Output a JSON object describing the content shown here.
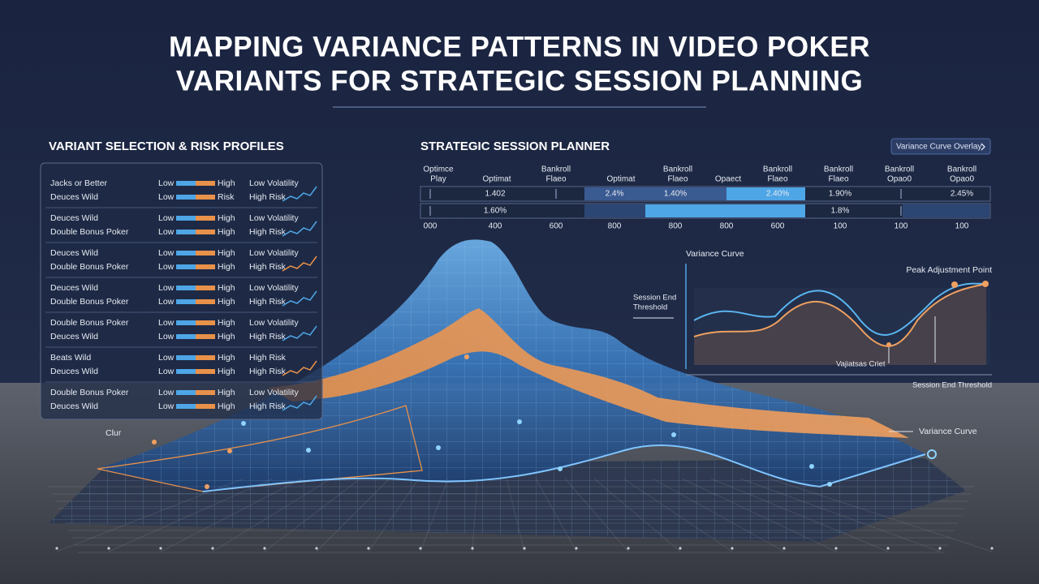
{
  "header": {
    "title_lines": [
      "MAPPING VARIANCE PATTERNS IN VIDEO POKER",
      "VARIANTS FOR STRATEGIC SESSION PLANNING"
    ]
  },
  "variant_panel": {
    "title": "VARIANT SELECTION & RISK PROFILES",
    "groups": [
      [
        {
          "name": "Jacks or Better",
          "low": "Low",
          "high": "High",
          "profile": "Low Volatility"
        },
        {
          "name": "Deuces Wild",
          "low": "Low",
          "high": "Risk",
          "profile": "High Risk"
        }
      ],
      [
        {
          "name": "Deuces Wild",
          "low": "Low",
          "high": "High",
          "profile": "Low Volatility"
        },
        {
          "name": "Double Bonus Poker",
          "low": "Low",
          "high": "High",
          "profile": "High Risk"
        }
      ],
      [
        {
          "name": "Deuces Wild",
          "low": "Low",
          "high": "High",
          "profile": "Low Volatility"
        },
        {
          "name": "Double Bonus Poker",
          "low": "Low",
          "high": "High",
          "profile": "High Risk"
        }
      ],
      [
        {
          "name": "Deuces Wild",
          "low": "Low",
          "high": "High",
          "profile": "Low Volatility"
        },
        {
          "name": "Double Bonus Poker",
          "low": "Low",
          "high": "High",
          "profile": "High Risk"
        }
      ],
      [
        {
          "name": "Double Bonus Poker",
          "low": "Low",
          "high": "High",
          "profile": "Low Volatility"
        },
        {
          "name": "Deuces Wild",
          "low": "Low",
          "high": "High",
          "profile": "High Risk"
        }
      ],
      [
        {
          "name": "Beats Wild",
          "low": "Low",
          "high": "High",
          "profile": "High Risk"
        },
        {
          "name": "Deuces Wild",
          "low": "Low",
          "high": "High",
          "profile": "High Risk"
        }
      ],
      [
        {
          "name": "Double Bonus Poker",
          "low": "Low",
          "high": "High",
          "profile": "Low Volatility"
        },
        {
          "name": "Deuces Wild",
          "low": "Low",
          "high": "High",
          "profile": "High Risk"
        }
      ]
    ]
  },
  "planner": {
    "title": "STRATEGIC SESSION PLANNER",
    "button": "Variance Curve Overlay",
    "headers": [
      [
        "Optimce",
        "Play"
      ],
      [
        "Optimat"
      ],
      [
        "Bankroll",
        "Flaeo"
      ],
      [
        "Optimat"
      ],
      [
        "Bankroll",
        "Flaeo"
      ],
      [
        "Opaect"
      ],
      [
        "Bankroll",
        "Flaeo"
      ],
      [
        "Bankroll",
        "Flaeo"
      ],
      [
        "Bankroll",
        "Opao0"
      ],
      [
        "Bankroll",
        "Opao0"
      ]
    ],
    "row1": [
      "1.402",
      "2.4%",
      "1.40%",
      "2.40%",
      "1.90%",
      "2.45%"
    ],
    "row2": [
      "1.60%",
      "1.8%"
    ],
    "scale": [
      "000",
      "400",
      "600",
      "800",
      "800",
      "800",
      "600",
      "100",
      "100",
      "100"
    ]
  },
  "curve_panel": {
    "title": "Variance Curve",
    "peak": "Peak Adjustment Point",
    "threshold_lines": [
      "Session End",
      "Threshold"
    ],
    "variance_point": "Vajiatsas Criet",
    "bottom": "Session End Threshold"
  },
  "surface": {
    "left_label": "Clur",
    "right_label": "Variance Curve"
  }
}
